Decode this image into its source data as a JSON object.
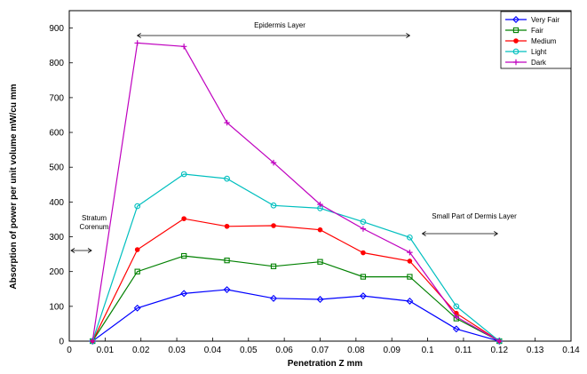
{
  "chart_data": {
    "type": "line",
    "title": "",
    "xlabel": "Penetration Z mm",
    "ylabel": "Absorption of power per unit volume mW/cu mm",
    "xlim": [
      0,
      0.14
    ],
    "ylim": [
      0,
      950
    ],
    "xticks": [
      0,
      0.01,
      0.02,
      0.03,
      0.04,
      0.05,
      0.06,
      0.07,
      0.08,
      0.09,
      0.1,
      0.11,
      0.12,
      0.13,
      0.14
    ],
    "xtick_labels": [
      "0",
      "0.01",
      "0.02",
      "0.03",
      "0.04",
      "0.05",
      "0.06",
      "0.07",
      "0.08",
      "0.09",
      "0.1",
      "0.11",
      "0.12",
      "0.13",
      "0.14"
    ],
    "yticks": [
      0,
      100,
      200,
      300,
      400,
      500,
      600,
      700,
      800,
      900
    ],
    "ytick_labels": [
      "0",
      "100",
      "200",
      "300",
      "400",
      "500",
      "600",
      "700",
      "800",
      "900"
    ],
    "grid": false,
    "legend_position": "top-right",
    "x": [
      0.0065,
      0.019,
      0.032,
      0.044,
      0.057,
      0.07,
      0.082,
      0.095,
      0.108,
      0.12
    ],
    "series": [
      {
        "name": "Very Fair",
        "color": "#0000ff",
        "marker": "diamond",
        "values": [
          0,
          95,
          137,
          148,
          123,
          120,
          130,
          115,
          35,
          0
        ]
      },
      {
        "name": "Fair",
        "color": "#008000",
        "marker": "square",
        "values": [
          0,
          200,
          245,
          232,
          215,
          228,
          185,
          185,
          65,
          0
        ]
      },
      {
        "name": "Medium",
        "color": "#ff0000",
        "marker": "dot",
        "values": [
          0,
          263,
          352,
          330,
          332,
          320,
          254,
          230,
          80,
          0
        ]
      },
      {
        "name": "Light",
        "color": "#00bfbf",
        "marker": "circle",
        "values": [
          0,
          388,
          480,
          467,
          390,
          382,
          343,
          298,
          100,
          0
        ]
      },
      {
        "name": "Dark",
        "color": "#bf00bf",
        "marker": "plus",
        "values": [
          0,
          857,
          847,
          628,
          513,
          393,
          323,
          255,
          70,
          0
        ]
      }
    ],
    "annotations": {
      "epidermis": "Epidermis Layer",
      "stratum_line1": "Stratum",
      "stratum_line2": "Corenum",
      "dermis": "Small Part of Dermis Layer"
    }
  }
}
